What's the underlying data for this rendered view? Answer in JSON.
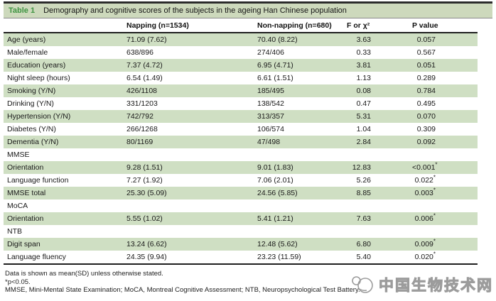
{
  "table": {
    "title_label": "Table 1",
    "title": "Demography and cognitive scores of the subjects in the ageing Han Chinese population",
    "columns": [
      "",
      "Napping (n=1534)",
      "Non-napping (n=680)",
      "F or χ²",
      "P value"
    ],
    "sig_marker": "*",
    "rows": [
      {
        "label": "Age (years)",
        "napping": "71.09 (7.62)",
        "non_napping": "70.40 (8.22)",
        "f": "3.63",
        "p": "0.057",
        "sig": false,
        "section": false
      },
      {
        "label": "Male/female",
        "napping": "638/896",
        "non_napping": "274/406",
        "f": "0.33",
        "p": "0.567",
        "sig": false,
        "section": false
      },
      {
        "label": "Education (years)",
        "napping": "7.37 (4.72)",
        "non_napping": "6.95 (4.71)",
        "f": "3.81",
        "p": "0.051",
        "sig": false,
        "section": false
      },
      {
        "label": "Night sleep (hours)",
        "napping": "6.54 (1.49)",
        "non_napping": "6.61 (1.51)",
        "f": "1.13",
        "p": "0.289",
        "sig": false,
        "section": false
      },
      {
        "label": "Smoking (Y/N)",
        "napping": "426/1108",
        "non_napping": "185/495",
        "f": "0.08",
        "p": "0.784",
        "sig": false,
        "section": false
      },
      {
        "label": "Drinking (Y/N)",
        "napping": "331/1203",
        "non_napping": "138/542",
        "f": "0.47",
        "p": "0.495",
        "sig": false,
        "section": false
      },
      {
        "label": "Hypertension (Y/N)",
        "napping": "742/792",
        "non_napping": "313/357",
        "f": "5.31",
        "p": "0.070",
        "sig": false,
        "section": false
      },
      {
        "label": "Diabetes (Y/N)",
        "napping": "266/1268",
        "non_napping": "106/574",
        "f": "1.04",
        "p": "0.309",
        "sig": false,
        "section": false
      },
      {
        "label": "Dementia (Y/N)",
        "napping": "80/1169",
        "non_napping": "47/498",
        "f": "2.84",
        "p": "0.092",
        "sig": false,
        "section": false
      },
      {
        "label": "MMSE",
        "section": true
      },
      {
        "label": "Orientation",
        "napping": "9.28 (1.51)",
        "non_napping": "9.01 (1.83)",
        "f": "12.83",
        "p": "<0.001",
        "sig": true,
        "section": false
      },
      {
        "label": "Language function",
        "napping": "7.27 (1.92)",
        "non_napping": "7.06 (2.01)",
        "f": "5.26",
        "p": "0.022",
        "sig": true,
        "section": false
      },
      {
        "label": "MMSE total",
        "napping": "25.30 (5.09)",
        "non_napping": "24.56 (5.85)",
        "f": "8.85",
        "p": "0.003",
        "sig": true,
        "section": false
      },
      {
        "label": "MoCA",
        "section": true
      },
      {
        "label": "Orientation",
        "napping": "5.55 (1.02)",
        "non_napping": "5.41 (1.21)",
        "f": "7.63",
        "p": "0.006",
        "sig": true,
        "section": false
      },
      {
        "label": "NTB",
        "section": true
      },
      {
        "label": "Digit span",
        "napping": "13.24 (6.62)",
        "non_napping": "12.48 (5.62)",
        "f": "6.80",
        "p": "0.009",
        "sig": true,
        "section": false
      },
      {
        "label": "Language fluency",
        "napping": "24.35 (9.94)",
        "non_napping": "23.23 (11.59)",
        "f": "5.40",
        "p": "0.020",
        "sig": true,
        "section": false
      }
    ],
    "footnotes": [
      "Data is shown as mean(SD) unless otherwise stated.",
      "*p<0.05.",
      "MMSE, Mini-Mental State Examination; MoCA, Montreal Cognitive Assessment; NTB, Neuropsychological Test Battery."
    ]
  },
  "watermark": {
    "text": "中国生物技术网"
  },
  "colors": {
    "accent_green": "#3f9442",
    "title_bar_bg": "#cdd9bc",
    "row_band_bg": "#cfdfc3",
    "border_dark": "#1f1f1f",
    "watermark_gray": "#9c9c9c"
  }
}
